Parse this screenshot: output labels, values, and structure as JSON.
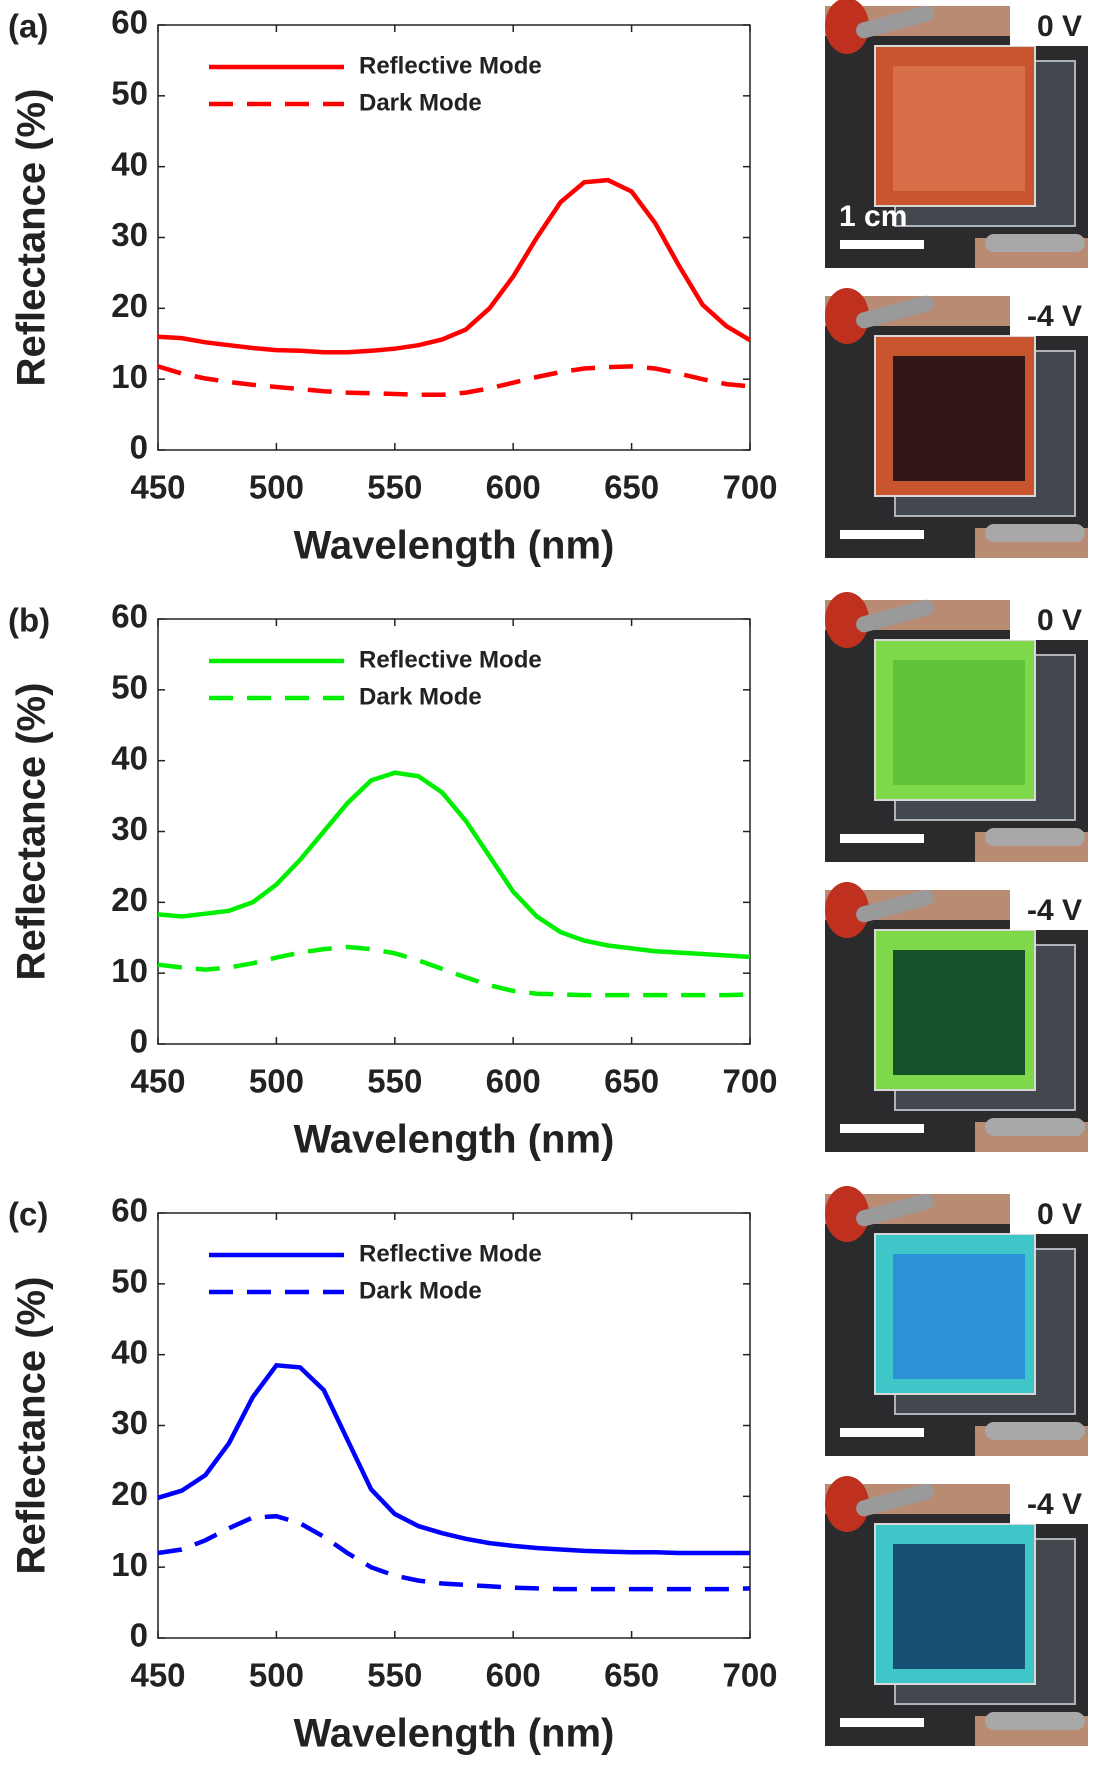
{
  "chart_data": [
    {
      "type": "line",
      "panel_label": "(a)",
      "xlabel": "Wavelength (nm)",
      "ylabel": "Reflectance (%)",
      "xlim": [
        450,
        700
      ],
      "xticks": [
        450,
        500,
        550,
        600,
        650,
        700
      ],
      "ylim": [
        0,
        60
      ],
      "yticks": [
        0,
        10,
        20,
        30,
        40,
        50,
        60
      ],
      "x": [
        450,
        460,
        470,
        480,
        490,
        500,
        510,
        520,
        530,
        540,
        550,
        560,
        570,
        580,
        590,
        600,
        610,
        620,
        630,
        640,
        650,
        660,
        670,
        680,
        690,
        700
      ],
      "series": [
        {
          "name": "Reflective Mode",
          "color": "#ff0000",
          "line_style": "solid",
          "values": [
            16,
            15.8,
            15.2,
            14.8,
            14.4,
            14.1,
            14.0,
            13.8,
            13.8,
            14.0,
            14.3,
            14.8,
            15.6,
            17.0,
            20,
            24.5,
            30,
            35,
            37.8,
            38.1,
            36.5,
            32,
            26,
            20.5,
            17.5,
            15.5
          ]
        },
        {
          "name": "Dark Mode",
          "color": "#ff0000",
          "line_style": "dashed",
          "values": [
            11.8,
            10.8,
            10.1,
            9.6,
            9.2,
            8.9,
            8.6,
            8.3,
            8.1,
            8.0,
            7.9,
            7.8,
            7.8,
            8.1,
            8.7,
            9.5,
            10.3,
            11.0,
            11.5,
            11.7,
            11.8,
            11.5,
            10.8,
            10.0,
            9.3,
            9.0
          ]
        }
      ],
      "photo_labels": [
        "0 V",
        "-4 V"
      ],
      "scale_bar_label": "1 cm"
    },
    {
      "type": "line",
      "panel_label": "(b)",
      "xlabel": "Wavelength (nm)",
      "ylabel": "Reflectance (%)",
      "xlim": [
        450,
        700
      ],
      "xticks": [
        450,
        500,
        550,
        600,
        650,
        700
      ],
      "ylim": [
        0,
        60
      ],
      "yticks": [
        0,
        10,
        20,
        30,
        40,
        50,
        60
      ],
      "x": [
        450,
        460,
        470,
        480,
        490,
        500,
        510,
        520,
        530,
        540,
        550,
        560,
        570,
        580,
        590,
        600,
        610,
        620,
        630,
        640,
        650,
        660,
        670,
        680,
        690,
        700
      ],
      "series": [
        {
          "name": "Reflective Mode",
          "color": "#00ee00",
          "line_style": "solid",
          "values": [
            18.3,
            18.0,
            18.4,
            18.8,
            20,
            22.5,
            26,
            30,
            34,
            37.2,
            38.3,
            37.8,
            35.5,
            31.5,
            26.5,
            21.5,
            18,
            15.8,
            14.6,
            13.9,
            13.5,
            13.1,
            12.9,
            12.7,
            12.5,
            12.3
          ]
        },
        {
          "name": "Dark Mode",
          "color": "#00ee00",
          "line_style": "dashed",
          "values": [
            11.2,
            10.8,
            10.5,
            10.8,
            11.4,
            12.2,
            12.9,
            13.4,
            13.7,
            13.4,
            12.8,
            11.8,
            10.6,
            9.4,
            8.3,
            7.5,
            7.1,
            7.0,
            6.9,
            6.9,
            6.9,
            6.9,
            6.9,
            6.9,
            6.9,
            7.0
          ]
        }
      ],
      "photo_labels": [
        "0 V",
        "-4 V"
      ]
    },
    {
      "type": "line",
      "panel_label": "(c)",
      "xlabel": "Wavelength (nm)",
      "ylabel": "Reflectance (%)",
      "xlim": [
        450,
        700
      ],
      "xticks": [
        450,
        500,
        550,
        600,
        650,
        700
      ],
      "ylim": [
        0,
        60
      ],
      "yticks": [
        0,
        10,
        20,
        30,
        40,
        50,
        60
      ],
      "x": [
        450,
        460,
        470,
        480,
        490,
        500,
        510,
        520,
        530,
        540,
        550,
        560,
        570,
        580,
        590,
        600,
        610,
        620,
        630,
        640,
        650,
        660,
        670,
        680,
        690,
        700
      ],
      "series": [
        {
          "name": "Reflective Mode",
          "color": "#0000ff",
          "line_style": "solid",
          "values": [
            19.8,
            20.8,
            23,
            27.5,
            34,
            38.5,
            38.2,
            35,
            28,
            21,
            17.5,
            15.8,
            14.8,
            14.0,
            13.4,
            13.0,
            12.7,
            12.5,
            12.3,
            12.2,
            12.1,
            12.1,
            12.0,
            12.0,
            12.0,
            12.0
          ]
        },
        {
          "name": "Dark Mode",
          "color": "#0000ff",
          "line_style": "dashed",
          "values": [
            12.0,
            12.5,
            13.8,
            15.5,
            17.0,
            17.2,
            16.2,
            14.3,
            12.0,
            10.0,
            8.8,
            8.1,
            7.7,
            7.5,
            7.3,
            7.1,
            7.0,
            6.9,
            6.9,
            6.9,
            6.9,
            6.9,
            6.9,
            6.9,
            6.9,
            7.0
          ]
        }
      ],
      "photo_labels": [
        "0 V",
        "-4 V"
      ]
    }
  ]
}
